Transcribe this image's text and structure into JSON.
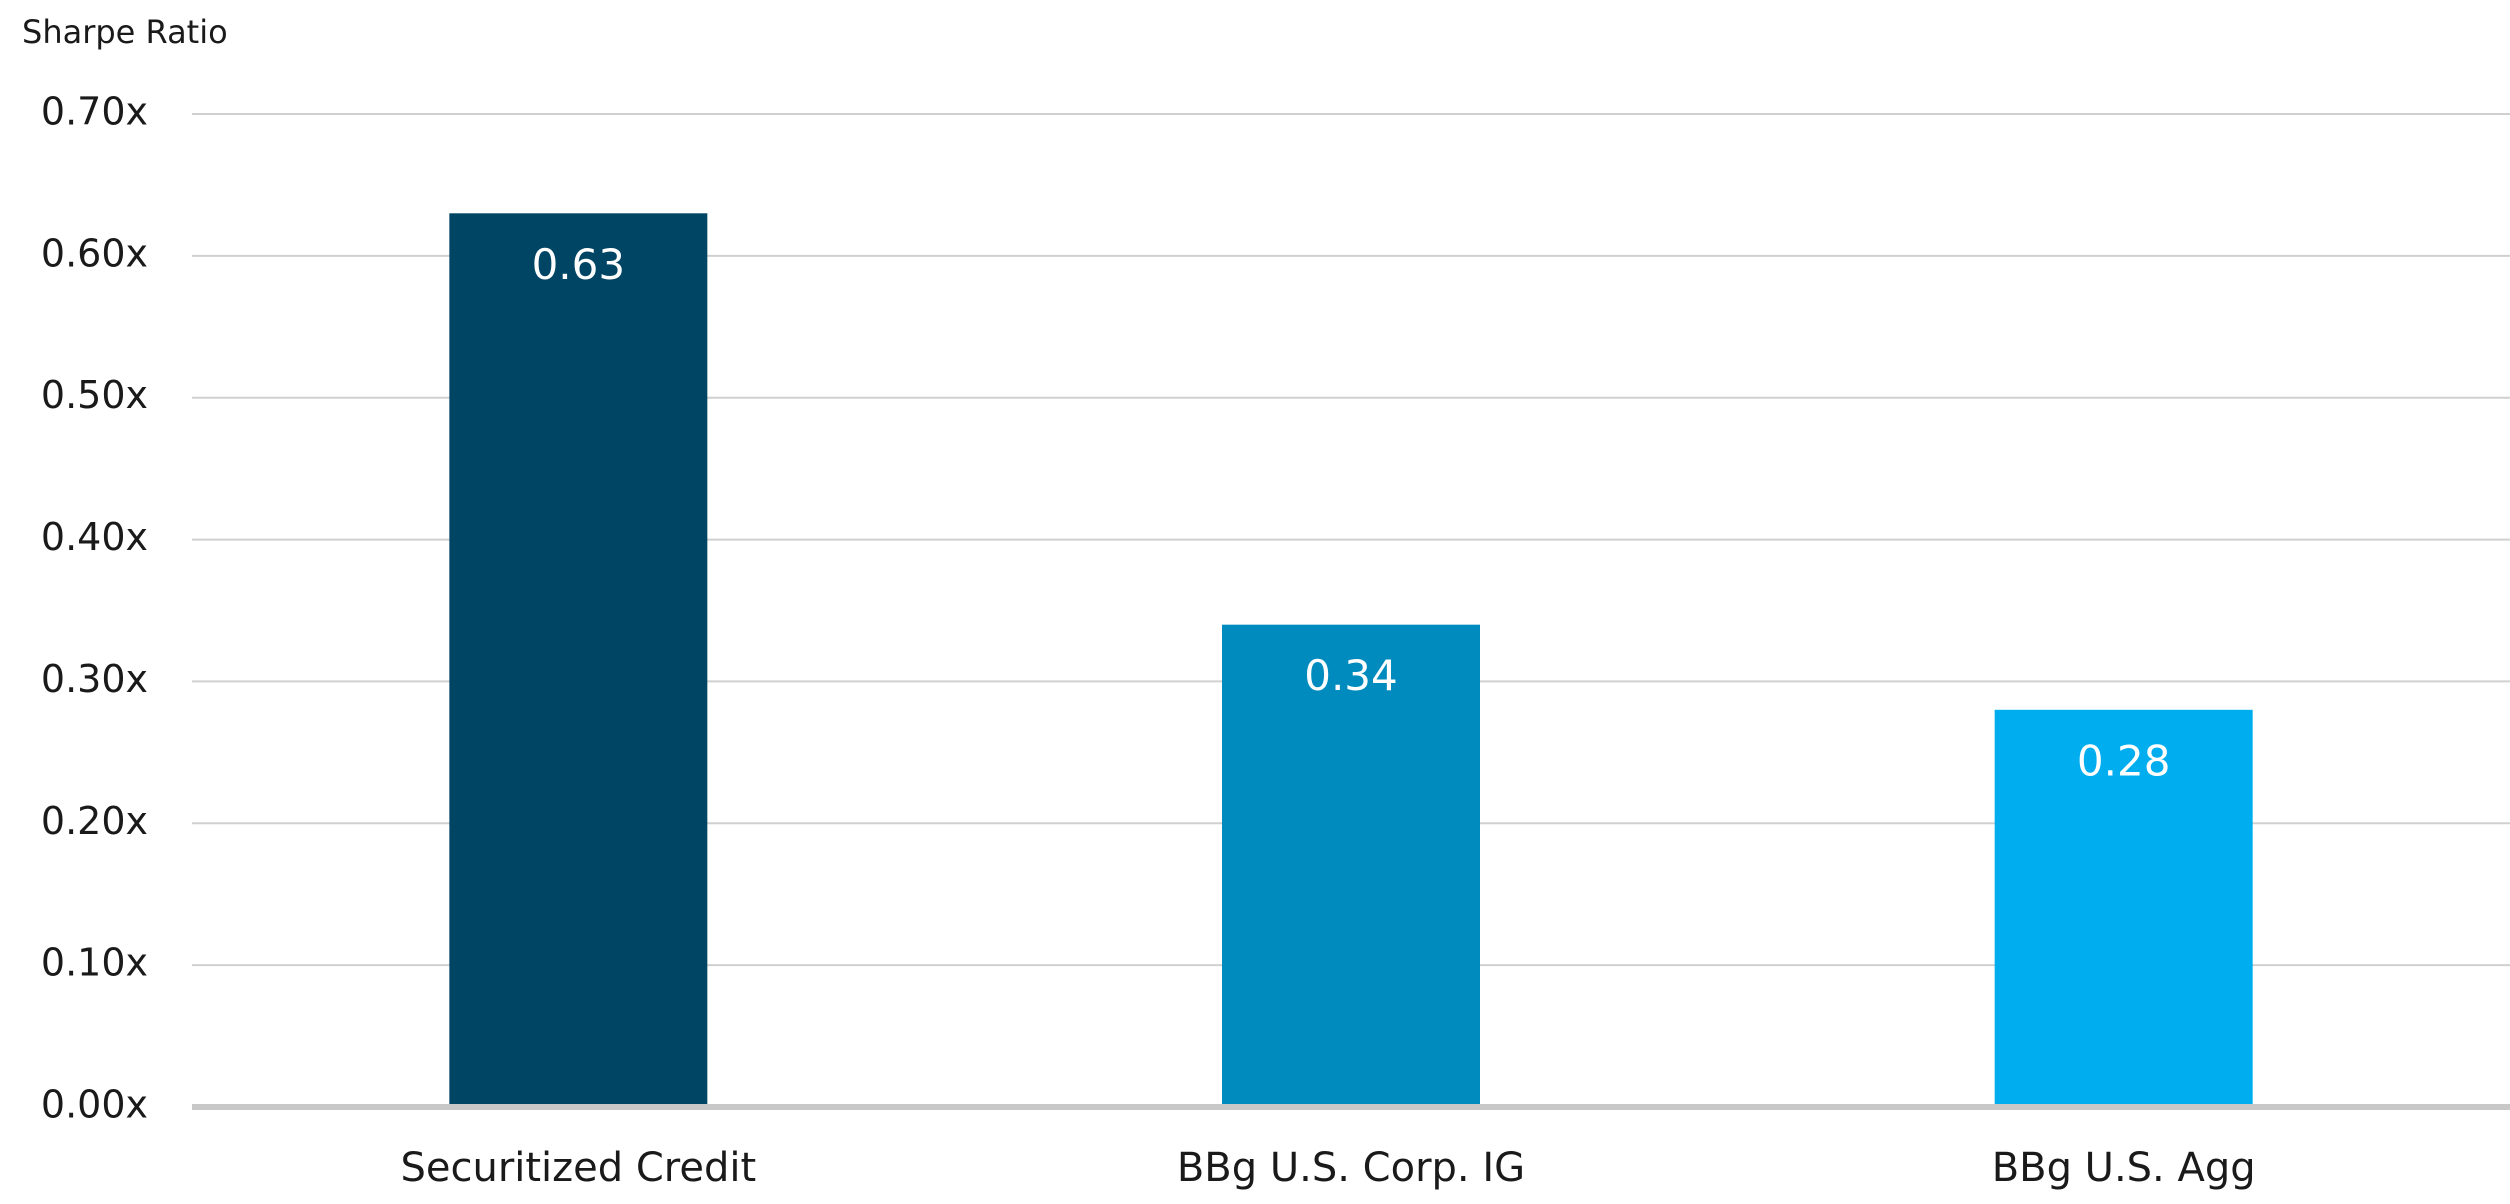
{
  "chart_data": {
    "type": "bar",
    "y_label": "Sharpe Ratio",
    "categories": [
      "Securitized Credit",
      "BBg U.S. Corp. IG",
      "BBg U.S. Agg"
    ],
    "values": [
      0.63,
      0.34,
      0.28
    ],
    "colors": [
      "#004563",
      "#008bbf",
      "#00aeef"
    ],
    "ylim": [
      0,
      0.7
    ],
    "yticks": [
      {
        "value": 0,
        "label": "0.00x"
      },
      {
        "value": 0.1,
        "label": "0.10x"
      },
      {
        "value": 0.2,
        "label": "0.20x"
      },
      {
        "value": 0.3,
        "label": "0.30x"
      },
      {
        "value": 0.4,
        "label": "0.40x"
      },
      {
        "value": 0.5,
        "label": "0.50x"
      },
      {
        "value": 0.6,
        "label": "0.60x"
      },
      {
        "value": 0.7,
        "label": "0.70x"
      }
    ],
    "grid": true
  }
}
